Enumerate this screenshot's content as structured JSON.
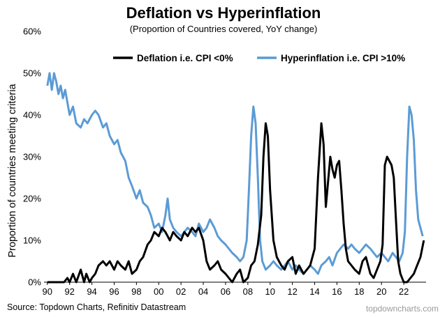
{
  "chart_data": {
    "type": "line",
    "title": "Deflation vs Hyperinflation",
    "subtitle": "(Proportion of Countries covered, YoY change)",
    "ylabel": "Proportion of countries meeting criteria",
    "xlabel": "",
    "ylim": [
      0,
      60
    ],
    "xlim": [
      1989.7,
      2024.0
    ],
    "yticks": [
      0,
      10,
      20,
      30,
      40,
      50,
      60
    ],
    "ytick_labels": [
      "0%",
      "10%",
      "20%",
      "30%",
      "40%",
      "50%",
      "60%"
    ],
    "xticks": [
      1990,
      1992,
      1994,
      1996,
      1998,
      2000,
      2002,
      2004,
      2006,
      2008,
      2010,
      2012,
      2014,
      2016,
      2018,
      2020,
      2022
    ],
    "xtick_labels": [
      "90",
      "92",
      "94",
      "96",
      "98",
      "00",
      "02",
      "04",
      "06",
      "08",
      "10",
      "12",
      "14",
      "16",
      "18",
      "20",
      "22"
    ],
    "grid": false,
    "legend_position": "top",
    "series": [
      {
        "name": "Deflation i.e. CPI <0%",
        "color": "#000000",
        "x": [
          1990.0,
          1991.0,
          1991.5,
          1991.8,
          1992.0,
          1992.3,
          1992.6,
          1993.0,
          1993.3,
          1993.5,
          1993.8,
          1994.0,
          1994.3,
          1994.6,
          1995.0,
          1995.3,
          1995.6,
          1996.0,
          1996.3,
          1996.6,
          1997.0,
          1997.3,
          1997.6,
          1998.0,
          1998.3,
          1998.6,
          1999.0,
          1999.3,
          1999.6,
          2000.0,
          2000.3,
          2000.6,
          2001.0,
          2001.3,
          2001.6,
          2002.0,
          2002.3,
          2002.6,
          2003.0,
          2003.3,
          2003.6,
          2004.0,
          2004.3,
          2004.6,
          2005.0,
          2005.3,
          2005.6,
          2006.0,
          2006.3,
          2006.6,
          2007.0,
          2007.3,
          2007.6,
          2008.0,
          2008.3,
          2008.6,
          2008.9,
          2009.2,
          2009.4,
          2009.6,
          2009.8,
          2010.0,
          2010.3,
          2010.6,
          2011.0,
          2011.3,
          2011.6,
          2012.0,
          2012.3,
          2012.6,
          2013.0,
          2013.3,
          2013.6,
          2014.0,
          2014.3,
          2014.6,
          2014.8,
          2015.0,
          2015.2,
          2015.4,
          2015.6,
          2015.8,
          2016.0,
          2016.2,
          2016.4,
          2016.6,
          2016.8,
          2017.0,
          2017.3,
          2017.6,
          2018.0,
          2018.3,
          2018.6,
          2019.0,
          2019.3,
          2019.6,
          2019.9,
          2020.1,
          2020.3,
          2020.5,
          2020.7,
          2020.9,
          2021.1,
          2021.3,
          2021.5,
          2021.7,
          2022.0,
          2022.3,
          2022.6,
          2022.9,
          2023.2,
          2023.5,
          2023.8
        ],
        "values": [
          0,
          0,
          0,
          1,
          0,
          2,
          0,
          3,
          0,
          2,
          0,
          1,
          2,
          4,
          5,
          4,
          5,
          3,
          5,
          4,
          3,
          5,
          2,
          3,
          5,
          6,
          9,
          10,
          12,
          11,
          13,
          12,
          10,
          12,
          11,
          10,
          12,
          11,
          13,
          12,
          13,
          10,
          5,
          3,
          4,
          5,
          3,
          2,
          1,
          0,
          2,
          3,
          0,
          1,
          4,
          5,
          9,
          16,
          30,
          38,
          35,
          22,
          10,
          6,
          4,
          3,
          5,
          6,
          2,
          4,
          2,
          3,
          4,
          8,
          25,
          38,
          33,
          18,
          24,
          30,
          27,
          25,
          28,
          29,
          22,
          14,
          8,
          5,
          4,
          3,
          2,
          5,
          6,
          2,
          1,
          3,
          5,
          9,
          28,
          30,
          29,
          28,
          25,
          15,
          5,
          2,
          0,
          0,
          1,
          2,
          4,
          6,
          10
        ]
      },
      {
        "name": "Hyperinflation i.e. CPI >10%",
        "color": "#5b9bd5",
        "x": [
          1990.0,
          1990.2,
          1990.4,
          1990.6,
          1990.8,
          1991.0,
          1991.2,
          1991.4,
          1991.6,
          1991.8,
          1992.0,
          1992.3,
          1992.6,
          1993.0,
          1993.3,
          1993.6,
          1994.0,
          1994.3,
          1994.6,
          1995.0,
          1995.3,
          1995.6,
          1996.0,
          1996.3,
          1996.6,
          1997.0,
          1997.3,
          1997.6,
          1998.0,
          1998.3,
          1998.6,
          1999.0,
          1999.3,
          1999.6,
          2000.0,
          2000.3,
          2000.6,
          2000.8,
          2001.0,
          2001.3,
          2001.6,
          2002.0,
          2002.3,
          2002.6,
          2003.0,
          2003.3,
          2003.6,
          2004.0,
          2004.3,
          2004.6,
          2005.0,
          2005.3,
          2005.6,
          2006.0,
          2006.3,
          2006.6,
          2007.0,
          2007.3,
          2007.6,
          2007.9,
          2008.1,
          2008.3,
          2008.5,
          2008.7,
          2008.9,
          2009.1,
          2009.3,
          2009.6,
          2010.0,
          2010.3,
          2010.6,
          2011.0,
          2011.3,
          2011.6,
          2012.0,
          2012.3,
          2012.6,
          2013.0,
          2013.3,
          2013.6,
          2014.0,
          2014.3,
          2014.6,
          2015.0,
          2015.3,
          2015.6,
          2016.0,
          2016.3,
          2016.6,
          2017.0,
          2017.3,
          2017.6,
          2018.0,
          2018.3,
          2018.6,
          2019.0,
          2019.3,
          2019.6,
          2020.0,
          2020.3,
          2020.6,
          2021.0,
          2021.3,
          2021.6,
          2021.9,
          2022.1,
          2022.3,
          2022.5,
          2022.7,
          2022.9,
          2023.1,
          2023.3,
          2023.5,
          2023.7
        ],
        "values": [
          47,
          50,
          46,
          50,
          48,
          45,
          47,
          44,
          46,
          43,
          40,
          42,
          38,
          37,
          39,
          38,
          40,
          41,
          40,
          37,
          38,
          35,
          33,
          34,
          31,
          29,
          25,
          23,
          20,
          22,
          19,
          18,
          16,
          13,
          14,
          12,
          16,
          20,
          15,
          13,
          12,
          11,
          12,
          13,
          12,
          11,
          14,
          12,
          13,
          15,
          13,
          11,
          10,
          9,
          8,
          7,
          6,
          5,
          6,
          10,
          22,
          35,
          42,
          38,
          25,
          10,
          5,
          3,
          4,
          5,
          4,
          3,
          4,
          5,
          3,
          4,
          3,
          2,
          3,
          4,
          3,
          2,
          4,
          5,
          6,
          4,
          7,
          8,
          9,
          8,
          9,
          8,
          7,
          8,
          9,
          8,
          7,
          6,
          7,
          6,
          5,
          7,
          6,
          5,
          7,
          12,
          30,
          42,
          40,
          34,
          22,
          15,
          13,
          11
        ]
      }
    ],
    "source": "Source: Topdown Charts, Refinitiv Datastream",
    "watermark": "topdowncharts.com"
  }
}
